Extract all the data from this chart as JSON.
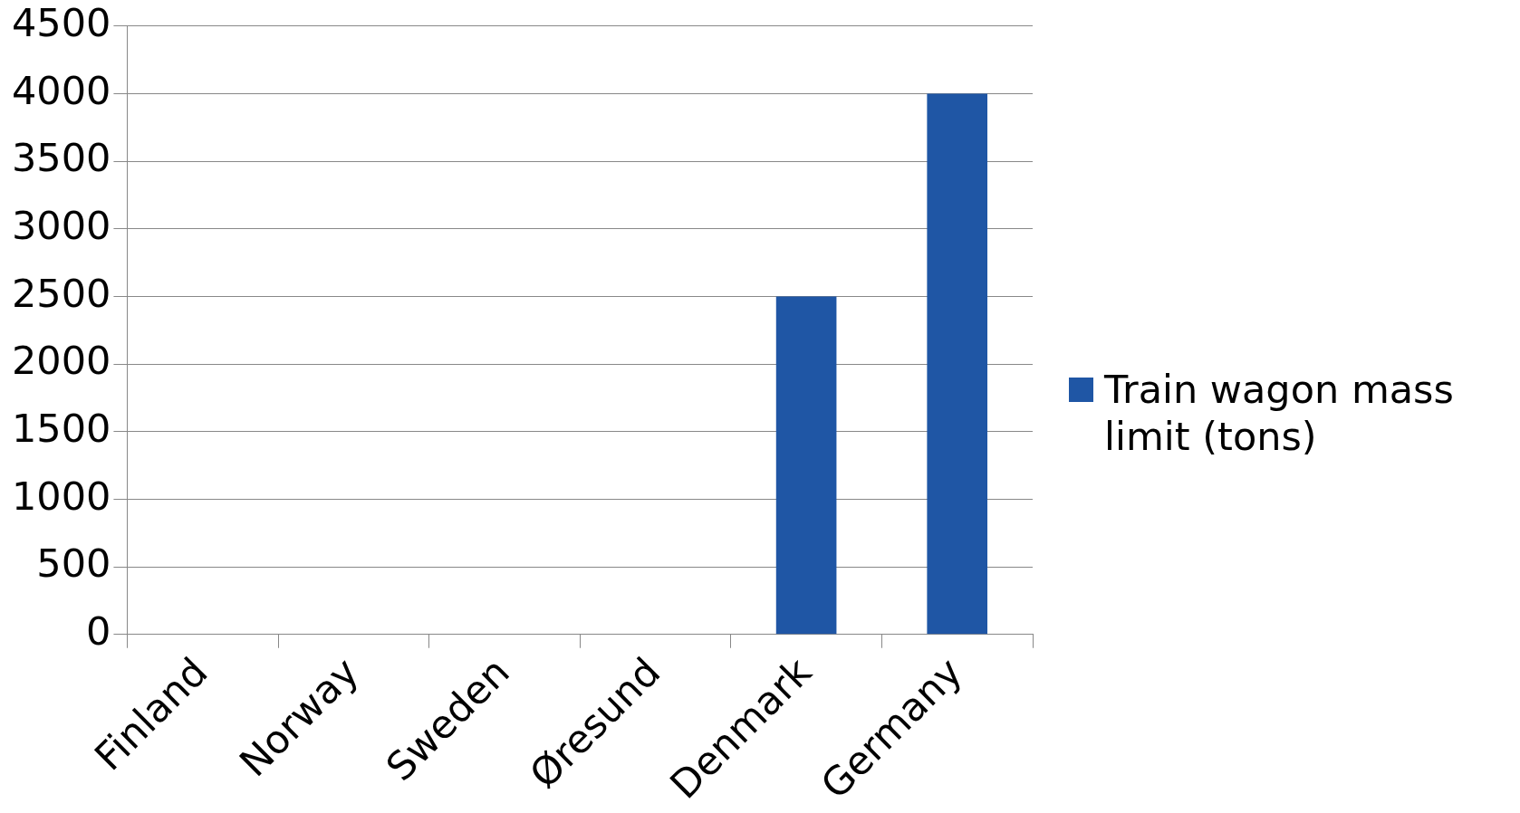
{
  "chart_data": {
    "type": "bar",
    "categories": [
      "Finland",
      "Norway",
      "Sweden",
      "Øresund",
      "Denmark",
      "Germany"
    ],
    "series": [
      {
        "name": "Train wagon mass limit (tons)",
        "color": "#1f56a5",
        "values": [
          null,
          null,
          null,
          null,
          2500,
          4000
        ]
      }
    ],
    "ylim": [
      0,
      4500
    ],
    "yticks": [
      0,
      500,
      1000,
      1500,
      2000,
      2500,
      3000,
      3500,
      4000,
      4500
    ],
    "grid": "y",
    "legend": "right"
  }
}
